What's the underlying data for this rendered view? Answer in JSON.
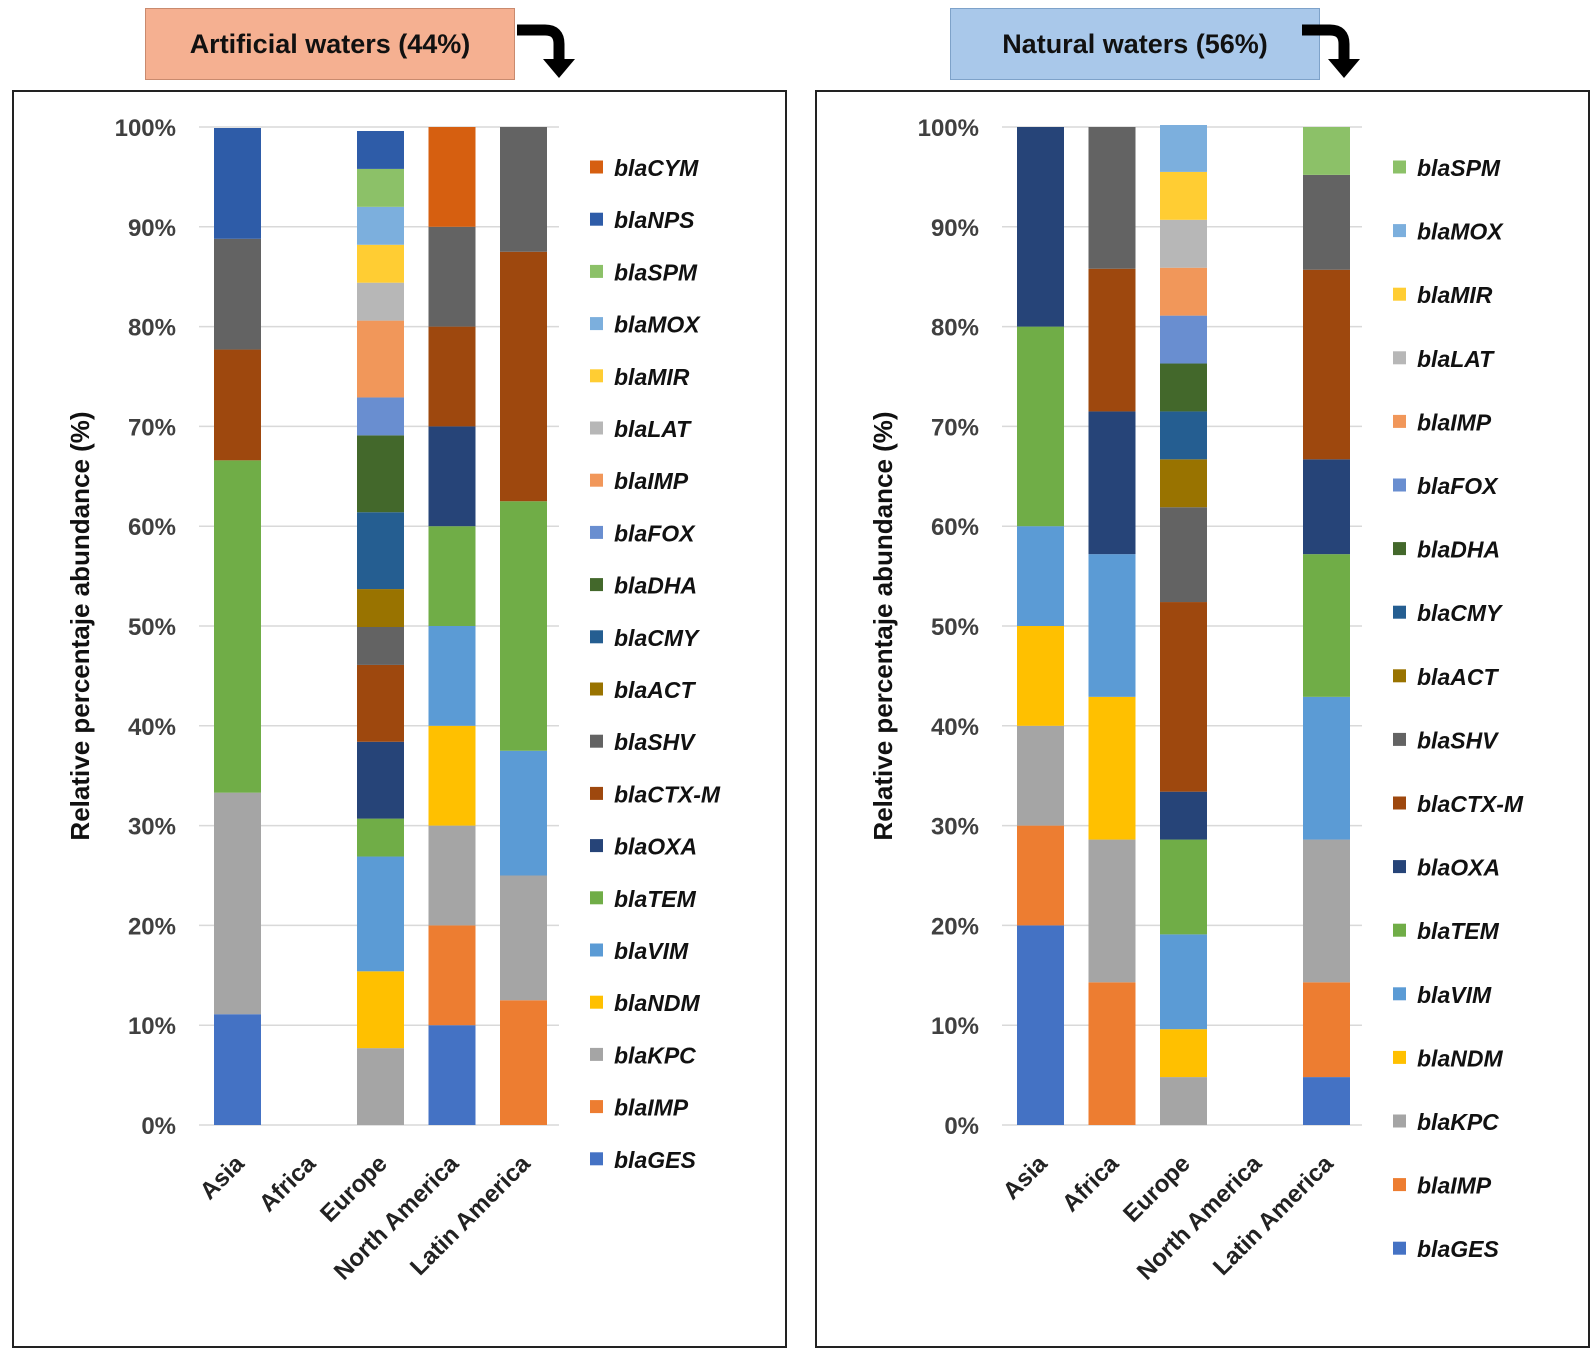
{
  "colors": {
    "blaGES": "#4472c4",
    "blaIMP_orange": "#ed7d31",
    "blaKPC": "#a5a5a5",
    "blaNDM": "#ffc000",
    "blaVIM": "#5b9bd5",
    "blaTEM": "#70ad47",
    "blaOXA": "#264478",
    "blaCTX-M": "#9e480e",
    "blaSHV": "#636363",
    "blaACT": "#997300",
    "blaCMY": "#255e91",
    "blaDHA": "#43682b",
    "blaFOX": "#698ed0",
    "blaIMP_light": "#f1975a",
    "blaLAT": "#b7b7b7",
    "blaMIR": "#ffcd33",
    "blaMOX": "#7cafdd",
    "blaSPM": "#8cc168",
    "blaNPS": "#2e5ca8",
    "blaCYM": "#d65f10"
  },
  "chart_data": [
    {
      "type": "bar",
      "stacked": true,
      "title": "Artificial waters (44%)",
      "ylabel": "Relative percentaje abundance (%)",
      "xlabel": "",
      "ylim": [
        0,
        100
      ],
      "yticks": [
        "0%",
        "10%",
        "20%",
        "30%",
        "40%",
        "50%",
        "60%",
        "70%",
        "80%",
        "90%",
        "100%"
      ],
      "categories": [
        "Asia",
        "Africa",
        "Europe",
        "North America",
        "Latin America"
      ],
      "legend": [
        {
          "label": "blaCYM",
          "key": "blaCYM"
        },
        {
          "label": "blaNPS",
          "key": "blaNPS"
        },
        {
          "label": "blaSPM",
          "key": "blaSPM"
        },
        {
          "label": "blaMOX",
          "key": "blaMOX"
        },
        {
          "label": "blaMIR",
          "key": "blaMIR"
        },
        {
          "label": "blaLAT",
          "key": "blaLAT"
        },
        {
          "label": "blaIMP",
          "key": "blaIMP_light"
        },
        {
          "label": "blaFOX",
          "key": "blaFOX"
        },
        {
          "label": "blaDHA",
          "key": "blaDHA"
        },
        {
          "label": "blaCMY",
          "key": "blaCMY"
        },
        {
          "label": "blaACT",
          "key": "blaACT"
        },
        {
          "label": "blaSHV",
          "key": "blaSHV"
        },
        {
          "label": "blaCTX-M",
          "key": "blaCTX-M"
        },
        {
          "label": "blaOXA",
          "key": "blaOXA"
        },
        {
          "label": "blaTEM",
          "key": "blaTEM"
        },
        {
          "label": "blaVIM",
          "key": "blaVIM"
        },
        {
          "label": "blaNDM",
          "key": "blaNDM"
        },
        {
          "label": "blaKPC",
          "key": "blaKPC"
        },
        {
          "label": "blaIMP",
          "key": "blaIMP_orange"
        },
        {
          "label": "blaGES",
          "key": "blaGES"
        }
      ],
      "series": [
        {
          "name": "blaGES",
          "key": "blaGES",
          "values": [
            11.1,
            0,
            0,
            10,
            0
          ]
        },
        {
          "name": "blaIMP",
          "key": "blaIMP_orange",
          "values": [
            0,
            0,
            0,
            10,
            12.5
          ]
        },
        {
          "name": "blaKPC",
          "key": "blaKPC",
          "values": [
            22.2,
            0,
            7.7,
            10,
            12.5
          ]
        },
        {
          "name": "blaNDM",
          "key": "blaNDM",
          "values": [
            0,
            0,
            7.7,
            10,
            0
          ]
        },
        {
          "name": "blaVIM",
          "key": "blaVIM",
          "values": [
            0,
            0,
            11.5,
            10,
            12.5
          ]
        },
        {
          "name": "blaTEM",
          "key": "blaTEM",
          "values": [
            33.3,
            0,
            3.8,
            10,
            25
          ]
        },
        {
          "name": "blaOXA",
          "key": "blaOXA",
          "values": [
            0,
            0,
            7.7,
            10,
            0
          ]
        },
        {
          "name": "blaCTX-M",
          "key": "blaCTX-M",
          "values": [
            11.1,
            0,
            7.7,
            10,
            25
          ]
        },
        {
          "name": "blaSHV",
          "key": "blaSHV",
          "values": [
            11.1,
            0,
            3.8,
            10,
            12.5
          ]
        },
        {
          "name": "blaACT",
          "key": "blaACT",
          "values": [
            0,
            0,
            3.8,
            0,
            0
          ]
        },
        {
          "name": "blaCMY",
          "key": "blaCMY",
          "values": [
            0,
            0,
            7.7,
            0,
            0
          ]
        },
        {
          "name": "blaDHA",
          "key": "blaDHA",
          "values": [
            0,
            0,
            7.7,
            0,
            0
          ]
        },
        {
          "name": "blaFOX",
          "key": "blaFOX",
          "values": [
            0,
            0,
            3.8,
            0,
            0
          ]
        },
        {
          "name": "blaIMP",
          "key": "blaIMP_light",
          "values": [
            0,
            0,
            7.7,
            0,
            0
          ]
        },
        {
          "name": "blaLAT",
          "key": "blaLAT",
          "values": [
            0,
            0,
            3.8,
            0,
            0
          ]
        },
        {
          "name": "blaMIR",
          "key": "blaMIR",
          "values": [
            0,
            0,
            3.8,
            0,
            0
          ]
        },
        {
          "name": "blaMOX",
          "key": "blaMOX",
          "values": [
            0,
            0,
            3.8,
            0,
            0
          ]
        },
        {
          "name": "blaSPM",
          "key": "blaSPM",
          "values": [
            0,
            0,
            3.8,
            0,
            0
          ]
        },
        {
          "name": "blaNPS",
          "key": "blaNPS",
          "values": [
            11.1,
            0,
            3.8,
            0,
            0
          ]
        },
        {
          "name": "blaCYM",
          "key": "blaCYM",
          "values": [
            0,
            0,
            0,
            10,
            0
          ]
        }
      ]
    },
    {
      "type": "bar",
      "stacked": true,
      "title": "Natural waters (56%)",
      "ylabel": "Relative percentaje abundance (%)",
      "xlabel": "",
      "ylim": [
        0,
        100
      ],
      "yticks": [
        "0%",
        "10%",
        "20%",
        "30%",
        "40%",
        "50%",
        "60%",
        "70%",
        "80%",
        "90%",
        "100%"
      ],
      "categories": [
        "Asia",
        "Africa",
        "Europe",
        "North America",
        "Latin America"
      ],
      "legend": [
        {
          "label": "blaSPM",
          "key": "blaSPM"
        },
        {
          "label": "blaMOX",
          "key": "blaMOX"
        },
        {
          "label": "blaMIR",
          "key": "blaMIR"
        },
        {
          "label": "blaLAT",
          "key": "blaLAT"
        },
        {
          "label": "blaIMP",
          "key": "blaIMP_light"
        },
        {
          "label": "blaFOX",
          "key": "blaFOX"
        },
        {
          "label": "blaDHA",
          "key": "blaDHA"
        },
        {
          "label": "blaCMY",
          "key": "blaCMY"
        },
        {
          "label": "blaACT",
          "key": "blaACT"
        },
        {
          "label": "blaSHV",
          "key": "blaSHV"
        },
        {
          "label": "blaCTX-M",
          "key": "blaCTX-M"
        },
        {
          "label": "blaOXA",
          "key": "blaOXA"
        },
        {
          "label": "blaTEM",
          "key": "blaTEM"
        },
        {
          "label": "blaVIM",
          "key": "blaVIM"
        },
        {
          "label": "blaNDM",
          "key": "blaNDM"
        },
        {
          "label": "blaKPC",
          "key": "blaKPC"
        },
        {
          "label": "blaIMP",
          "key": "blaIMP_orange"
        },
        {
          "label": "blaGES",
          "key": "blaGES"
        }
      ],
      "series": [
        {
          "name": "blaGES",
          "key": "blaGES",
          "values": [
            20,
            0,
            0,
            0,
            4.8
          ]
        },
        {
          "name": "blaIMP",
          "key": "blaIMP_orange",
          "values": [
            10,
            14.3,
            0,
            0,
            9.5
          ]
        },
        {
          "name": "blaKPC",
          "key": "blaKPC",
          "values": [
            10,
            14.3,
            4.8,
            0,
            14.3
          ]
        },
        {
          "name": "blaNDM",
          "key": "blaNDM",
          "values": [
            10,
            14.3,
            4.8,
            0,
            0
          ]
        },
        {
          "name": "blaVIM",
          "key": "blaVIM",
          "values": [
            10,
            14.3,
            9.5,
            0,
            14.3
          ]
        },
        {
          "name": "blaTEM",
          "key": "blaTEM",
          "values": [
            20,
            0,
            9.5,
            0,
            14.3
          ]
        },
        {
          "name": "blaOXA",
          "key": "blaOXA",
          "values": [
            20,
            14.3,
            4.8,
            0,
            9.5
          ]
        },
        {
          "name": "blaCTX-M",
          "key": "blaCTX-M",
          "values": [
            0,
            14.3,
            19,
            0,
            19
          ]
        },
        {
          "name": "blaSHV",
          "key": "blaSHV",
          "values": [
            0,
            14.2,
            9.5,
            0,
            9.5
          ]
        },
        {
          "name": "blaACT",
          "key": "blaACT",
          "values": [
            0,
            0,
            4.8,
            0,
            0
          ]
        },
        {
          "name": "blaCMY",
          "key": "blaCMY",
          "values": [
            0,
            0,
            4.8,
            0,
            0
          ]
        },
        {
          "name": "blaDHA",
          "key": "blaDHA",
          "values": [
            0,
            0,
            4.8,
            0,
            0
          ]
        },
        {
          "name": "blaFOX",
          "key": "blaFOX",
          "values": [
            0,
            0,
            4.8,
            0,
            0
          ]
        },
        {
          "name": "blaIMP",
          "key": "blaIMP_light",
          "values": [
            0,
            0,
            4.8,
            0,
            0
          ]
        },
        {
          "name": "blaLAT",
          "key": "blaLAT",
          "values": [
            0,
            0,
            4.8,
            0,
            0
          ]
        },
        {
          "name": "blaMIR",
          "key": "blaMIR",
          "values": [
            0,
            0,
            4.8,
            0,
            0
          ]
        },
        {
          "name": "blaMOX",
          "key": "blaMOX",
          "values": [
            0,
            0,
            4.7,
            0,
            0
          ]
        },
        {
          "name": "blaSPM",
          "key": "blaSPM",
          "values": [
            0,
            0,
            0,
            0,
            4.8
          ]
        }
      ]
    }
  ]
}
